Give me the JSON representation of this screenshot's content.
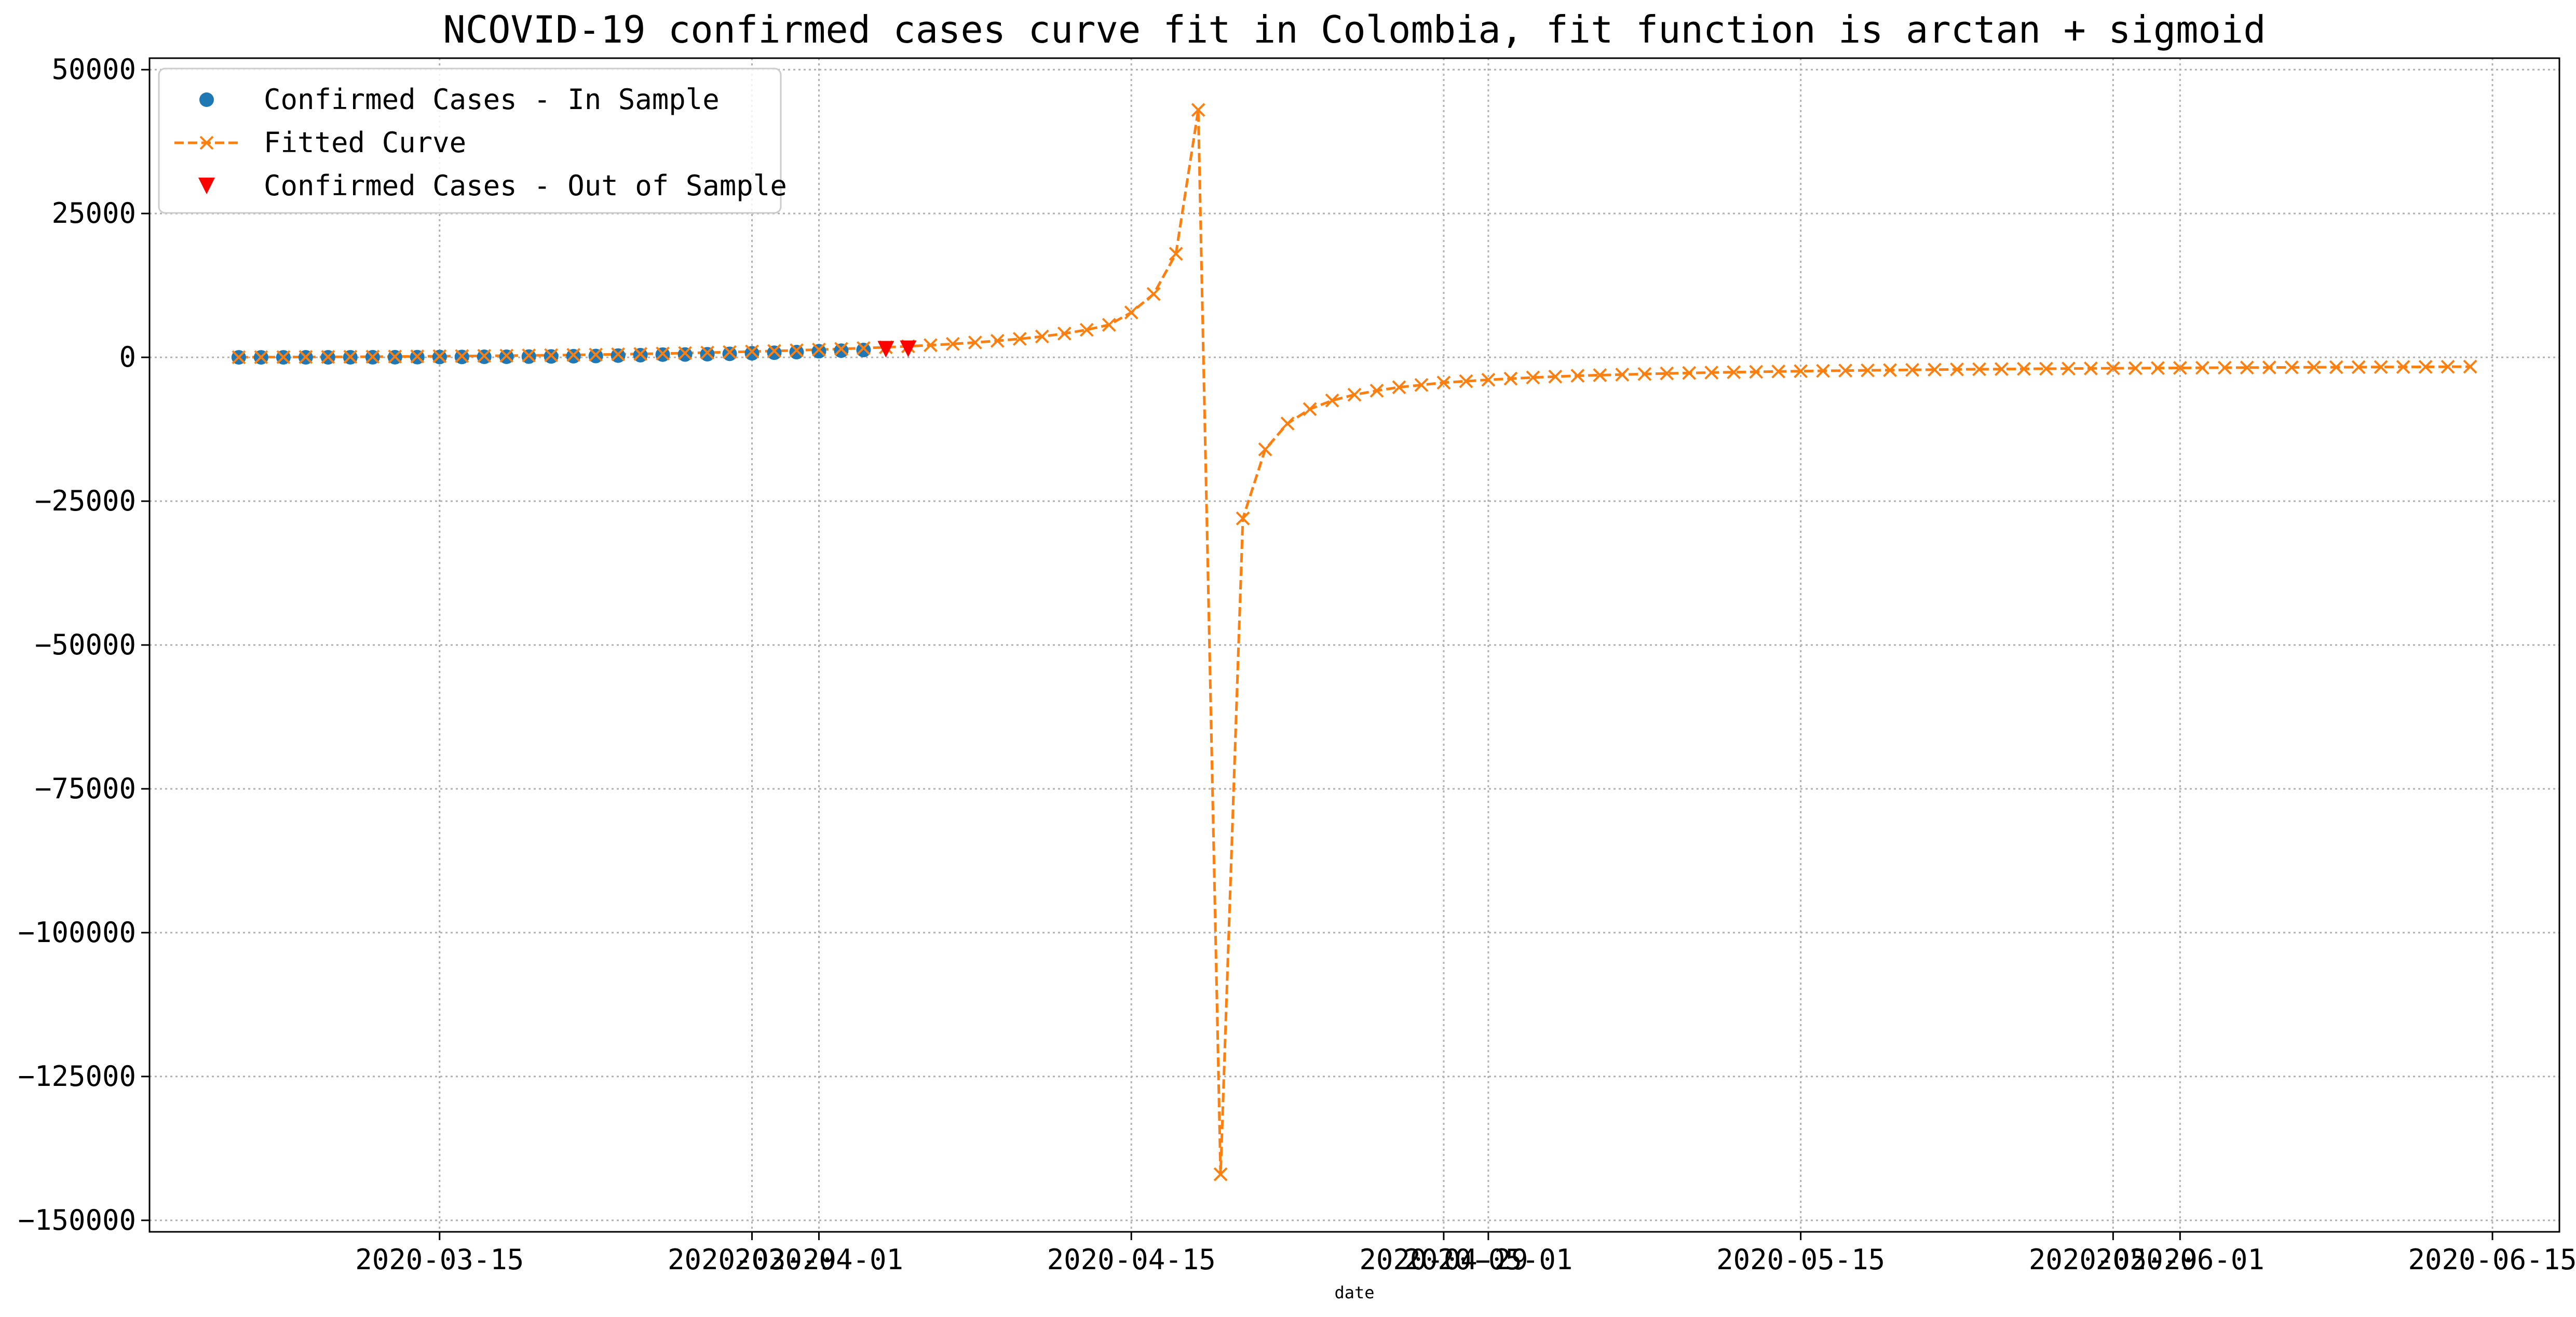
{
  "chart_data": {
    "type": "line",
    "title": "NCOVID-19 confirmed cases curve fit in Colombia, fit function is arctan + sigmoid",
    "xlabel": "date",
    "ylabel": "",
    "grid": true,
    "legend_position": "upper-left",
    "xlim": [
      "2020-03-02",
      "2020-06-18"
    ],
    "ylim": [
      -152000,
      52000
    ],
    "x_ticks": [
      {
        "date": "2020-03-15",
        "label": "2020-03-15"
      },
      {
        "date": "2020-03-29",
        "label": "2020-03-29"
      },
      {
        "date": "2020-04-01",
        "label": "2020-04-01"
      },
      {
        "date": "2020-04-15",
        "label": "2020-04-15"
      },
      {
        "date": "2020-04-29",
        "label": "2020-04-29"
      },
      {
        "date": "2020-05-01",
        "label": "2020-05-01"
      },
      {
        "date": "2020-05-15",
        "label": "2020-05-15"
      },
      {
        "date": "2020-05-29",
        "label": "2020-05-29"
      },
      {
        "date": "2020-06-01",
        "label": "2020-06-01"
      },
      {
        "date": "2020-06-15",
        "label": "2020-06-15"
      }
    ],
    "y_ticks": [
      {
        "value": 50000,
        "label": "50000"
      },
      {
        "value": 25000,
        "label": "25000"
      },
      {
        "value": 0,
        "label": "0"
      },
      {
        "value": -25000,
        "label": "−25000"
      },
      {
        "value": -50000,
        "label": "−50000"
      },
      {
        "value": -75000,
        "label": "−75000"
      },
      {
        "value": -100000,
        "label": "−100000"
      },
      {
        "value": -125000,
        "label": "−125000"
      },
      {
        "value": -150000,
        "label": "−150000"
      }
    ],
    "series": [
      {
        "name": "Confirmed Cases - In Sample",
        "style": "circle-markers",
        "color": "#1f77b4",
        "x": [
          "2020-03-06",
          "2020-03-07",
          "2020-03-08",
          "2020-03-09",
          "2020-03-10",
          "2020-03-11",
          "2020-03-12",
          "2020-03-13",
          "2020-03-14",
          "2020-03-15",
          "2020-03-16",
          "2020-03-17",
          "2020-03-18",
          "2020-03-19",
          "2020-03-20",
          "2020-03-21",
          "2020-03-22",
          "2020-03-23",
          "2020-03-24",
          "2020-03-25",
          "2020-03-26",
          "2020-03-27",
          "2020-03-28",
          "2020-03-29",
          "2020-03-30",
          "2020-03-31",
          "2020-04-01",
          "2020-04-02",
          "2020-04-03"
        ],
        "y": [
          1,
          1,
          1,
          3,
          3,
          9,
          13,
          22,
          34,
          54,
          65,
          93,
          102,
          128,
          158,
          196,
          231,
          306,
          378,
          470,
          491,
          539,
          608,
          702,
          798,
          906,
          1065,
          1161,
          1267
        ]
      },
      {
        "name": "Fitted Curve",
        "style": "dashed-line-x-markers",
        "color": "#ff7f0e",
        "x": [
          "2020-03-06",
          "2020-03-07",
          "2020-03-08",
          "2020-03-09",
          "2020-03-10",
          "2020-03-11",
          "2020-03-12",
          "2020-03-13",
          "2020-03-14",
          "2020-03-15",
          "2020-03-16",
          "2020-03-17",
          "2020-03-18",
          "2020-03-19",
          "2020-03-20",
          "2020-03-21",
          "2020-03-22",
          "2020-03-23",
          "2020-03-24",
          "2020-03-25",
          "2020-03-26",
          "2020-03-27",
          "2020-03-28",
          "2020-03-29",
          "2020-03-30",
          "2020-03-31",
          "2020-04-01",
          "2020-04-02",
          "2020-04-03",
          "2020-04-04",
          "2020-04-05",
          "2020-04-06",
          "2020-04-07",
          "2020-04-08",
          "2020-04-09",
          "2020-04-10",
          "2020-04-11",
          "2020-04-12",
          "2020-04-13",
          "2020-04-14",
          "2020-04-15",
          "2020-04-16",
          "2020-04-17",
          "2020-04-18",
          "2020-04-19",
          "2020-04-20",
          "2020-04-21",
          "2020-04-22",
          "2020-04-23",
          "2020-04-24",
          "2020-04-25",
          "2020-04-26",
          "2020-04-27",
          "2020-04-28",
          "2020-04-29",
          "2020-04-30",
          "2020-05-01",
          "2020-05-02",
          "2020-05-03",
          "2020-05-04",
          "2020-05-05",
          "2020-05-06",
          "2020-05-07",
          "2020-05-08",
          "2020-05-09",
          "2020-05-10",
          "2020-05-11",
          "2020-05-12",
          "2020-05-13",
          "2020-05-14",
          "2020-05-15",
          "2020-05-16",
          "2020-05-17",
          "2020-05-18",
          "2020-05-19",
          "2020-05-20",
          "2020-05-21",
          "2020-05-22",
          "2020-05-23",
          "2020-05-24",
          "2020-05-25",
          "2020-05-26",
          "2020-05-27",
          "2020-05-28",
          "2020-05-29",
          "2020-05-30",
          "2020-05-31",
          "2020-06-01",
          "2020-06-02",
          "2020-06-03",
          "2020-06-04",
          "2020-06-05",
          "2020-06-06",
          "2020-06-07",
          "2020-06-08",
          "2020-06-09",
          "2020-06-10",
          "2020-06-11",
          "2020-06-12",
          "2020-06-13",
          "2020-06-14"
        ],
        "y": [
          20,
          30,
          40,
          55,
          70,
          90,
          110,
          130,
          160,
          190,
          220,
          255,
          290,
          330,
          370,
          420,
          470,
          530,
          590,
          660,
          740,
          820,
          910,
          1010,
          1110,
          1220,
          1340,
          1470,
          1600,
          1750,
          1920,
          2110,
          2330,
          2580,
          2870,
          3210,
          3620,
          4130,
          4780,
          5650,
          7800,
          11000,
          18000,
          43000,
          -142000,
          -28000,
          -16000,
          -11500,
          -9000,
          -7500,
          -6500,
          -5800,
          -5200,
          -4800,
          -4400,
          -4150,
          -3900,
          -3700,
          -3500,
          -3350,
          -3200,
          -3100,
          -3000,
          -2900,
          -2800,
          -2720,
          -2650,
          -2580,
          -2520,
          -2460,
          -2400,
          -2350,
          -2300,
          -2260,
          -2220,
          -2180,
          -2140,
          -2100,
          -2070,
          -2040,
          -2010,
          -1980,
          -1950,
          -1925,
          -1900,
          -1880,
          -1860,
          -1840,
          -1820,
          -1800,
          -1780,
          -1760,
          -1745,
          -1730,
          -1715,
          -1700,
          -1685,
          -1670,
          -1655,
          -1640,
          -1625
        ]
      },
      {
        "name": "Confirmed Cases - Out of Sample",
        "style": "triangle-down-markers",
        "color": "#ff0000",
        "x": [
          "2020-04-04",
          "2020-04-05"
        ],
        "y": [
          1406,
          1485
        ]
      }
    ]
  }
}
